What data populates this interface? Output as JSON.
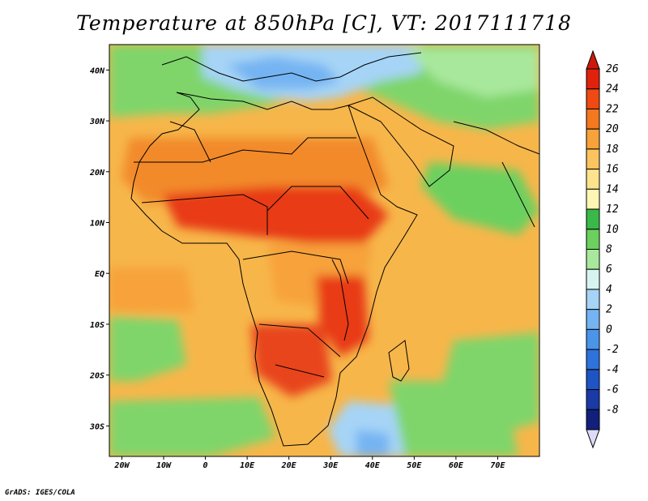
{
  "title": "Temperature at 850hPa [C], VT: 2017111718",
  "credit": "GrADS: IGES/COLA",
  "map": {
    "lon_range": [
      -23,
      80
    ],
    "lat_range": [
      -36,
      45
    ],
    "lat_ticks": [
      {
        "value": 40,
        "label": "40N"
      },
      {
        "value": 30,
        "label": "30N"
      },
      {
        "value": 20,
        "label": "20N"
      },
      {
        "value": 10,
        "label": "10N"
      },
      {
        "value": 0,
        "label": "EQ"
      },
      {
        "value": -10,
        "label": "10S"
      },
      {
        "value": -20,
        "label": "20S"
      },
      {
        "value": -30,
        "label": "30S"
      }
    ],
    "lon_ticks": [
      {
        "value": -20,
        "label": "20W"
      },
      {
        "value": -10,
        "label": "10W"
      },
      {
        "value": 0,
        "label": "0"
      },
      {
        "value": 10,
        "label": "10E"
      },
      {
        "value": 20,
        "label": "20E"
      },
      {
        "value": 30,
        "label": "30E"
      },
      {
        "value": 40,
        "label": "40E"
      },
      {
        "value": 50,
        "label": "50E"
      },
      {
        "value": 60,
        "label": "60E"
      },
      {
        "value": 70,
        "label": "70E"
      }
    ]
  },
  "colorbar": {
    "levels": [
      {
        "label": "26",
        "color": "#e0220d"
      },
      {
        "label": "24",
        "color": "#ef4a12"
      },
      {
        "label": "22",
        "color": "#f3781e"
      },
      {
        "label": "20",
        "color": "#f7a23a"
      },
      {
        "label": "18",
        "color": "#fbc45e"
      },
      {
        "label": "16",
        "color": "#fde38c"
      },
      {
        "label": "14",
        "color": "#fdf6b4"
      },
      {
        "label": "12",
        "color": "#3ab94a"
      },
      {
        "label": "10",
        "color": "#6cd05e"
      },
      {
        "label": "8",
        "color": "#a8e89c"
      },
      {
        "label": "6",
        "color": "#d8f4f0"
      },
      {
        "label": "4",
        "color": "#a6d4f6"
      },
      {
        "label": "2",
        "color": "#74b4f2"
      },
      {
        "label": "0",
        "color": "#4a94ea"
      },
      {
        "label": "-2",
        "color": "#2e72dc"
      },
      {
        "label": "-4",
        "color": "#1f54c4"
      },
      {
        "label": "-6",
        "color": "#1a3aa6"
      },
      {
        "label": "-8",
        "color": "#12207c"
      }
    ],
    "top_arrow_color": "#cc1a0a",
    "bottom_arrow_color": "#dcdcf8"
  },
  "field_colors": {
    "ocean_warm": "#f7b64a",
    "ocean_cool": "#7fd56a",
    "ocean_cold": "#9ccff2",
    "land_hot": "#e83a12",
    "land_warm": "#f28a2a",
    "mediterranean": "#8cd278"
  }
}
